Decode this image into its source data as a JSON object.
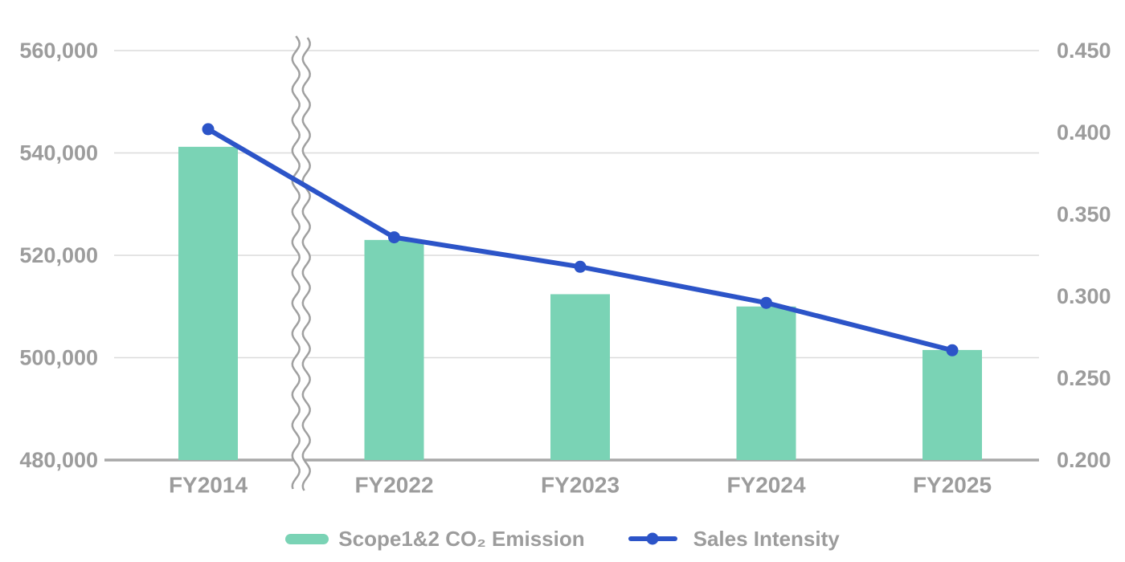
{
  "chart_data": {
    "type": "combo_bar_line",
    "title": "",
    "categories": [
      "FY2014",
      "FY2022",
      "FY2023",
      "FY2024",
      "FY2025"
    ],
    "series": [
      {
        "name": "Scope1&2 CO₂ Emission",
        "type": "bar",
        "axis": "left",
        "color": "#7ad3b5",
        "values": [
          541200,
          523000,
          512400,
          510000,
          501500
        ]
      },
      {
        "name": "Sales Intensity",
        "type": "line",
        "axis": "right",
        "color": "#2c54c8",
        "values": [
          0.402,
          0.336,
          0.318,
          0.296,
          0.267
        ]
      }
    ],
    "left_axis": {
      "min": 480000,
      "max": 560000,
      "step": 20000,
      "ticks": [
        {
          "value": 560000,
          "label": "560,000"
        },
        {
          "value": 540000,
          "label": "540,000"
        },
        {
          "value": 520000,
          "label": "520,000"
        },
        {
          "value": 500000,
          "label": "500,000"
        },
        {
          "value": 480000,
          "label": "480,000"
        }
      ]
    },
    "right_axis": {
      "min": 0.2,
      "max": 0.45,
      "step": 0.05,
      "ticks": [
        {
          "value": 0.45,
          "label": "0.450"
        },
        {
          "value": 0.4,
          "label": "0.400"
        },
        {
          "value": 0.35,
          "label": "0.350"
        },
        {
          "value": 0.3,
          "label": "0.300"
        },
        {
          "value": 0.25,
          "label": "0.250"
        },
        {
          "value": 0.2,
          "label": "0.200"
        }
      ]
    },
    "x_axis_break": {
      "after_category": "FY2014",
      "style": "double-wavy-line"
    },
    "grid": true,
    "legend_position": "bottom"
  },
  "legend": {
    "items": [
      {
        "label": "Scope1&2 CO₂ Emission",
        "swatch": "bar",
        "color": "#7ad3b5"
      },
      {
        "label": "Sales Intensity",
        "swatch": "line-dot",
        "color": "#2c54c8"
      }
    ]
  },
  "colors": {
    "bar": "#7ad3b5",
    "line": "#2c54c8",
    "grid": "#dbdbdb",
    "axis": "#a8a8a8",
    "break_lines": "#a0a0a0",
    "tick_text": "#9c9c9c",
    "background": "#ffffff"
  }
}
